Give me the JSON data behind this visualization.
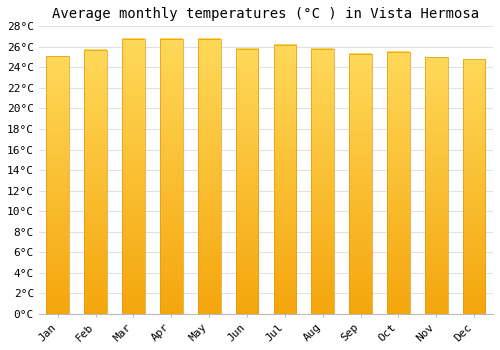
{
  "title": "Average monthly temperatures (°C ) in Vista Hermosa",
  "months": [
    "Jan",
    "Feb",
    "Mar",
    "Apr",
    "May",
    "Jun",
    "Jul",
    "Aug",
    "Sep",
    "Oct",
    "Nov",
    "Dec"
  ],
  "temperatures": [
    25.1,
    25.7,
    26.8,
    26.8,
    26.8,
    25.8,
    26.2,
    25.8,
    25.3,
    25.5,
    25.0,
    24.8
  ],
  "bar_color_top": "#F5A800",
  "bar_color_bottom": "#FFD966",
  "ylim": [
    0,
    28
  ],
  "ytick_step": 2,
  "background_color": "#ffffff",
  "grid_color": "#e0e0e0",
  "title_fontsize": 10,
  "tick_fontsize": 8,
  "xlabel_rotation": 45,
  "bar_width": 0.6
}
